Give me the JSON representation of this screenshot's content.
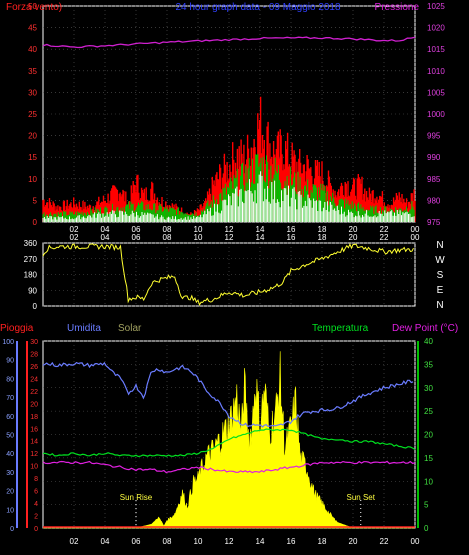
{
  "chart_data": [
    {
      "type": "line",
      "title": "24 hour graph data - 09 Maggio 2018",
      "left_label": "Forza vento)",
      "right_label": "Pressione",
      "x_ticks": [
        "02",
        "04",
        "06",
        "08",
        "10",
        "12",
        "14",
        "16",
        "18",
        "20",
        "22",
        "00"
      ],
      "y_left_ticks": [
        "0",
        "5",
        "10",
        "15",
        "20",
        "25",
        "30",
        "35",
        "40",
        "45",
        "50"
      ],
      "y_right_ticks": [
        "975",
        "980",
        "985",
        "990",
        "995",
        "1000",
        "1005",
        "1010",
        "1015",
        "1020",
        "1025"
      ],
      "ylim_left": [
        0,
        50
      ],
      "ylim_right": [
        975,
        1025
      ],
      "series": [
        {
          "name": "Pressione",
          "color": "#d020d0",
          "x": [
            0,
            2,
            4,
            6,
            8,
            10,
            12,
            14,
            16,
            18,
            20,
            22,
            23,
            24
          ],
          "y": [
            1016,
            1015.5,
            1015.8,
            1016.2,
            1016.6,
            1016.9,
            1017.2,
            1017.5,
            1017.6,
            1017.6,
            1017.4,
            1017,
            1017,
            1017.8
          ]
        },
        {
          "name": "",
          "color": "#ff0000",
          "x": [
            0,
            1,
            2,
            3,
            4,
            5,
            5.5,
            6,
            6.5,
            7,
            7.5,
            8,
            8.5,
            9,
            9.5,
            10,
            10.5,
            11,
            11.5,
            12,
            12.5,
            13,
            13.5,
            14,
            14.5,
            15,
            15.5,
            16,
            16.5,
            17,
            17.5,
            18,
            18.5,
            19,
            19.5,
            20,
            20.5,
            21,
            21.5,
            22,
            22.5,
            23,
            23.5,
            24
          ],
          "y": [
            6,
            4,
            5,
            4,
            6,
            9,
            5,
            11,
            7,
            9,
            6,
            5,
            4,
            3,
            2,
            3,
            5,
            10,
            13,
            15,
            18,
            17,
            21,
            27,
            22,
            18,
            20,
            17,
            15,
            15,
            13,
            13,
            10,
            8,
            11,
            9,
            10,
            7,
            8,
            6,
            5,
            7,
            5,
            8
          ]
        },
        {
          "name": "",
          "color": "#00c000",
          "x": [
            0,
            2,
            4,
            6,
            8,
            10,
            11,
            12,
            13,
            14,
            15,
            16,
            17,
            18,
            19,
            20,
            21,
            22,
            23,
            24
          ],
          "y": [
            2,
            2,
            3,
            4,
            3,
            2,
            5,
            8,
            11,
            14,
            12,
            10,
            8,
            7,
            5,
            4,
            3,
            3,
            3,
            4
          ]
        },
        {
          "name": "",
          "color": "#ffffff",
          "x": [
            0,
            2,
            4,
            6,
            8,
            10,
            11,
            12,
            13,
            14,
            15,
            16,
            17,
            18,
            19,
            20,
            21,
            22,
            23,
            24
          ],
          "y": [
            1,
            1,
            2,
            2,
            1,
            1,
            3,
            5,
            7,
            9,
            7,
            6,
            5,
            4,
            3,
            2,
            2,
            2,
            2,
            2
          ]
        }
      ]
    },
    {
      "type": "line",
      "x_ticks": [
        "02",
        "04",
        "06",
        "08",
        "10",
        "12",
        "14",
        "16",
        "18",
        "20",
        "22",
        "00"
      ],
      "y_ticks": [
        "0",
        "90",
        "180",
        "270",
        "360"
      ],
      "compass_labels": [
        "N",
        "W",
        "S",
        "E",
        "N"
      ],
      "ylim": [
        0,
        360
      ],
      "series": [
        {
          "name": "",
          "color": "#ffff30",
          "x": [
            0,
            0.3,
            1,
            2,
            3,
            4,
            5,
            5.5,
            6,
            6.5,
            7,
            7.5,
            8,
            8.5,
            9,
            9.5,
            10,
            11,
            12,
            13,
            14,
            15,
            15.5,
            16,
            17,
            18,
            19,
            20,
            21,
            22,
            23,
            24
          ],
          "y": [
            300,
            330,
            340,
            340,
            340,
            340,
            335,
            40,
            50,
            40,
            130,
            150,
            160,
            170,
            45,
            50,
            20,
            40,
            80,
            60,
            80,
            110,
            140,
            200,
            240,
            270,
            310,
            345,
            330,
            310,
            320,
            325
          ]
        }
      ]
    },
    {
      "type": "area",
      "labels": [
        "Pioggia",
        "Umidita",
        "Solar",
        "Temperatura",
        "Dew Point (°C)"
      ],
      "label_colors": [
        "#ff2020",
        "#6a7cff",
        "#a0a060",
        "#00e020",
        "#e020e0"
      ],
      "x_ticks": [
        "02",
        "04",
        "06",
        "08",
        "10",
        "12",
        "14",
        "16",
        "18",
        "20",
        "22",
        "00"
      ],
      "y_rain_ticks": [
        "0",
        "10",
        "20",
        "30",
        "40",
        "50",
        "60",
        "70",
        "80",
        "90",
        "100"
      ],
      "y_umid_ticks": [
        "0",
        "2",
        "4",
        "6",
        "8",
        "10",
        "12",
        "14",
        "16",
        "18",
        "20",
        "22",
        "24",
        "26",
        "28",
        "30"
      ],
      "y_temp_ticks": [
        "0",
        "5",
        "10",
        "15",
        "20",
        "25",
        "30",
        "35",
        "40"
      ],
      "ylim_umid": [
        0,
        100
      ],
      "ylim_temp": [
        0,
        40
      ],
      "annotations": [
        {
          "text": "Sun Rise",
          "x": 6
        },
        {
          "text": "Sun Set",
          "x": 20.5
        }
      ],
      "series": [
        {
          "name": "Umidita",
          "color": "#6a7cff",
          "x": [
            0,
            1,
            2,
            3,
            4,
            4.5,
            5,
            5.5,
            6,
            6.5,
            7,
            7.5,
            8,
            8.5,
            9,
            9.5,
            10,
            10.5,
            11,
            11.5,
            12,
            13,
            14,
            15,
            16,
            16.5,
            17,
            18,
            19,
            20,
            21,
            22,
            23,
            24
          ],
          "y": [
            88,
            87,
            88,
            87,
            88,
            83,
            80,
            72,
            76,
            70,
            84,
            85,
            83,
            85,
            86,
            84,
            80,
            74,
            70,
            66,
            60,
            55,
            55,
            54,
            57,
            60,
            62,
            63,
            64,
            68,
            72,
            75,
            77,
            79
          ]
        },
        {
          "name": "Temperatura",
          "color": "#00e020",
          "x": [
            0,
            1,
            2,
            3,
            4,
            5,
            6,
            7,
            8,
            9,
            10,
            11,
            12,
            13,
            14,
            15,
            16,
            17,
            18,
            19,
            20,
            21,
            22,
            23,
            24
          ],
          "y": [
            16,
            15.5,
            16,
            15.5,
            16,
            15.5,
            15.5,
            15.5,
            15.5,
            15.5,
            16,
            17,
            19,
            20,
            21,
            21,
            21,
            20,
            19,
            19,
            18.5,
            18.5,
            18,
            17.5,
            17
          ]
        },
        {
          "name": "Dew Point (°C)",
          "color": "#e020e0",
          "x": [
            0,
            1,
            2,
            3,
            4,
            5,
            6,
            7,
            8,
            9,
            10,
            11,
            12,
            13,
            14,
            15,
            16,
            17,
            18,
            19,
            20,
            21,
            22,
            23,
            24
          ],
          "y": [
            14,
            14,
            14,
            14,
            13.5,
            13,
            12.5,
            12.5,
            12,
            12.5,
            13,
            12.5,
            12,
            12,
            12,
            12.5,
            13,
            13.5,
            14,
            14,
            14,
            14,
            14,
            14,
            14
          ]
        },
        {
          "name": "Solar",
          "color": "#ffff00",
          "x": [
            0,
            6,
            7,
            7.5,
            7.8,
            8,
            8.5,
            9,
            9.3,
            9.7,
            10,
            10.5,
            11,
            11.5,
            12,
            12.2,
            12.5,
            12.8,
            13,
            13.3,
            13.5,
            13.7,
            14,
            14.3,
            14.6,
            15,
            15.3,
            15.6,
            16,
            16.3,
            16.6,
            17,
            17.5,
            18,
            18.5,
            19,
            20,
            24
          ],
          "y": [
            0,
            0,
            2,
            6,
            1,
            4,
            8,
            20,
            12,
            26,
            28,
            40,
            45,
            52,
            60,
            65,
            75,
            55,
            80,
            50,
            60,
            85,
            60,
            80,
            55,
            65,
            86,
            45,
            58,
            72,
            40,
            35,
            20,
            14,
            8,
            3,
            0,
            0
          ]
        }
      ]
    }
  ]
}
